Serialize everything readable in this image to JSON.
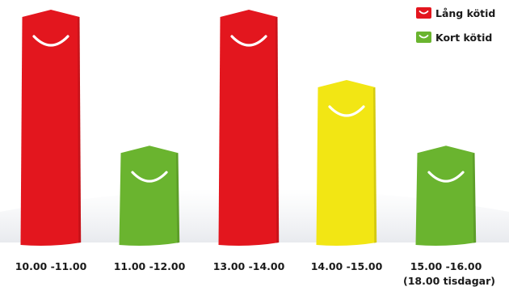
{
  "chart_data": {
    "type": "bar",
    "categories": [
      "10.00 -11.00",
      "11.00 -12.00",
      "13.00 -14.00",
      "14.00 -15.00",
      "15.00 -16.00"
    ],
    "category_notes": [
      "",
      "",
      "",
      "",
      "(18.00 tisdagar)"
    ],
    "values": [
      100,
      42,
      100,
      70,
      42
    ],
    "bar_colors": [
      "#e3161e",
      "#6ab42f",
      "#e3161e",
      "#f2e614",
      "#6ab42f"
    ],
    "ylim": [
      0,
      100
    ],
    "legend_position": "top-right",
    "legend": [
      {
        "label": "Lång kötid",
        "color": "#e3161e"
      },
      {
        "label": "Kort kötid",
        "color": "#6ab42f"
      }
    ],
    "bar_icon": "smile-icon"
  }
}
